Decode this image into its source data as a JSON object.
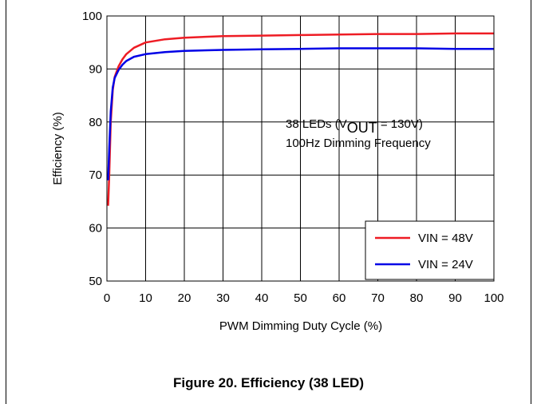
{
  "figure_caption": "Figure 20. Efficiency (38 LED)",
  "chart_data": {
    "type": "line",
    "title": "",
    "xlabel": "PWM Dimming Duty Cycle (%)",
    "ylabel": "Efficiency (%)",
    "xlim": [
      0,
      100
    ],
    "ylim": [
      50,
      100
    ],
    "xticks": [
      0,
      10,
      20,
      30,
      40,
      50,
      60,
      70,
      80,
      90,
      100
    ],
    "yticks": [
      50,
      60,
      70,
      80,
      90,
      100
    ],
    "grid": true,
    "legend": "bottom-right",
    "annotation": {
      "line1_prefix": "38 LEDs (V",
      "line1_sub": "OUT",
      "line1_suffix": " = 130V)",
      "line2": "100Hz Dimming Frequency"
    },
    "series": [
      {
        "name": "VIN = 48V",
        "color": "#ee1c24",
        "x": [
          0.3,
          0.6,
          1,
          1.5,
          2,
          3,
          4,
          5,
          7,
          10,
          15,
          20,
          30,
          40,
          50,
          60,
          70,
          80,
          90,
          100
        ],
        "y": [
          64.2,
          70,
          80,
          86,
          88.5,
          90.5,
          91.8,
          92.8,
          94,
          95,
          95.6,
          95.9,
          96.2,
          96.3,
          96.4,
          96.5,
          96.6,
          96.6,
          96.7,
          96.7
        ]
      },
      {
        "name": "VIN = 24V",
        "color": "#0000e6",
        "x": [
          0.3,
          0.6,
          1,
          1.5,
          2,
          3,
          4,
          5,
          7,
          10,
          15,
          20,
          30,
          40,
          50,
          60,
          70,
          80,
          90,
          100
        ],
        "y": [
          69,
          75,
          82,
          86.5,
          88.3,
          89.8,
          90.8,
          91.5,
          92.3,
          92.8,
          93.2,
          93.4,
          93.6,
          93.7,
          93.8,
          93.9,
          93.9,
          93.9,
          93.8,
          93.8
        ]
      }
    ]
  }
}
